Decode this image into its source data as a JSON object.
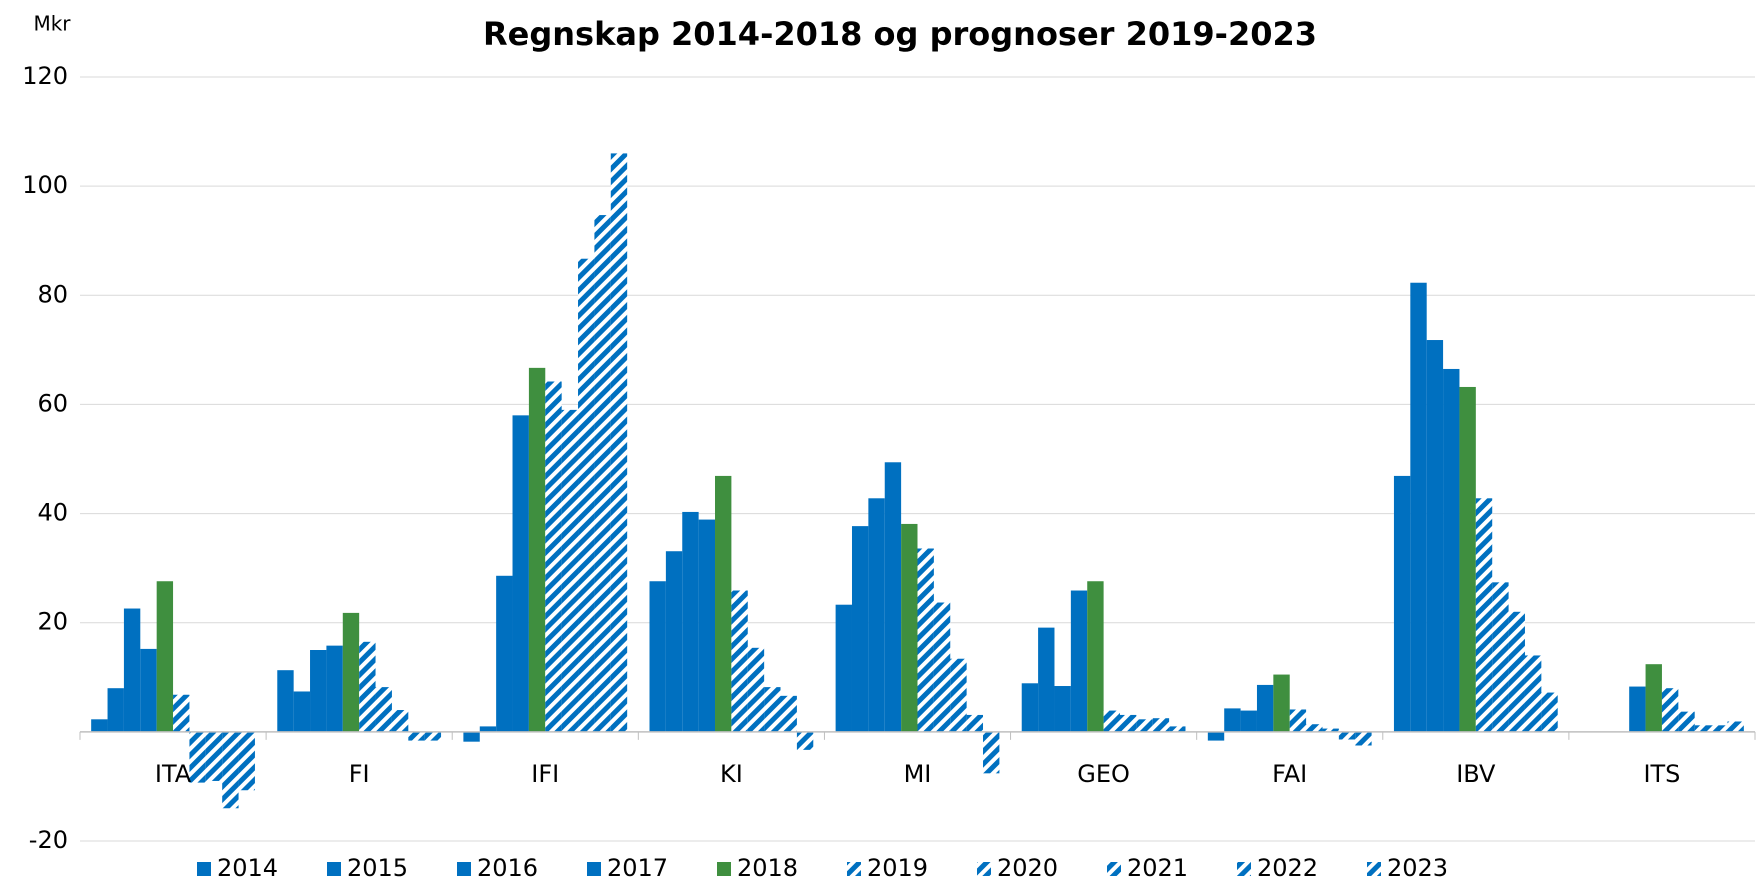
{
  "chart_data": {
    "type": "bar",
    "title": "Regnskap 2014-2018 og prognoser 2019-2023",
    "y_label": "Mkr",
    "categories": [
      "ITA",
      "FI",
      "IFI",
      "KI",
      "MI",
      "GEO",
      "FAI",
      "IBV",
      "ITS"
    ],
    "series": [
      {
        "name": "2014",
        "color": "#0070c0",
        "hatch": false,
        "values": [
          2.3,
          11.3,
          -1.8,
          27.6,
          23.3,
          8.9,
          -1.6,
          46.9,
          0
        ]
      },
      {
        "name": "2015",
        "color": "#0070c0",
        "hatch": false,
        "values": [
          8,
          7.4,
          1,
          33.1,
          37.7,
          19.1,
          4.3,
          82.3,
          0
        ]
      },
      {
        "name": "2016",
        "color": "#0070c0",
        "hatch": false,
        "values": [
          22.6,
          15,
          28.6,
          40.3,
          42.8,
          8.4,
          3.9,
          71.8,
          0
        ]
      },
      {
        "name": "2017",
        "color": "#0070c0",
        "hatch": false,
        "values": [
          15.2,
          15.8,
          58,
          38.9,
          49.4,
          25.9,
          8.6,
          66.5,
          8.3
        ]
      },
      {
        "name": "2018",
        "color": "#3f8f3f",
        "hatch": false,
        "values": [
          27.6,
          21.8,
          66.7,
          46.9,
          38.1,
          27.6,
          10.5,
          63.2,
          12.4
        ]
      },
      {
        "name": "2019",
        "color": "#0070c0",
        "hatch": true,
        "values": [
          6.8,
          16.5,
          64.2,
          25.9,
          33.6,
          3.9,
          4.1,
          42.8,
          8
        ]
      },
      {
        "name": "2020",
        "color": "#0070c0",
        "hatch": true,
        "values": [
          -9.3,
          8.2,
          59,
          15.4,
          23.7,
          3.1,
          1.4,
          27.4,
          3.7
        ]
      },
      {
        "name": "2021",
        "color": "#0070c0",
        "hatch": true,
        "values": [
          -9,
          4,
          86.7,
          8.2,
          13.4,
          2.3,
          0.6,
          22,
          1.2
        ]
      },
      {
        "name": "2022",
        "color": "#0070c0",
        "hatch": true,
        "values": [
          -14,
          -1.6,
          94.7,
          6.6,
          3.1,
          2.5,
          -1.4,
          14,
          1.2
        ]
      },
      {
        "name": "2023",
        "color": "#0070c0",
        "hatch": true,
        "values": [
          -10.7,
          -1.6,
          106,
          -3.3,
          -7.6,
          1,
          -2.5,
          7.2,
          1.9
        ]
      }
    ],
    "ylim": [
      -20,
      120
    ],
    "yticks": [
      -20,
      20,
      40,
      60,
      80,
      100,
      120
    ],
    "grid": true,
    "legend": "bottom"
  }
}
